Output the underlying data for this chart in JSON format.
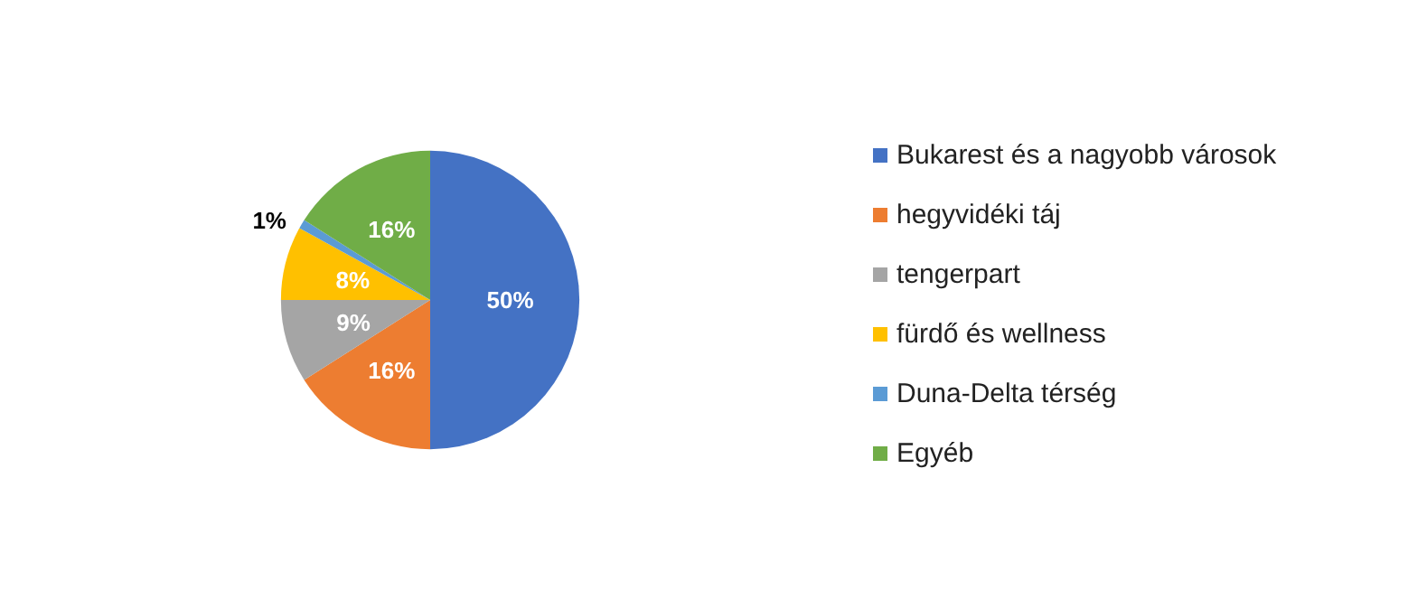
{
  "chart_data": {
    "type": "pie",
    "categories": [
      "Bukarest és a nagyobb városok",
      "hegyvidéki táj",
      "tengerpart",
      "fürdő és wellness",
      "Duna-Delta térség",
      "Egyéb"
    ],
    "values": [
      50,
      16,
      9,
      8,
      1,
      16
    ],
    "value_labels": [
      "50%",
      "16%",
      "9%",
      "8%",
      "1%",
      "16%"
    ],
    "colors": [
      "#4472c4",
      "#ed7d31",
      "#a5a5a5",
      "#ffc000",
      "#5b9bd5",
      "#70ad47"
    ],
    "legend": "right"
  }
}
